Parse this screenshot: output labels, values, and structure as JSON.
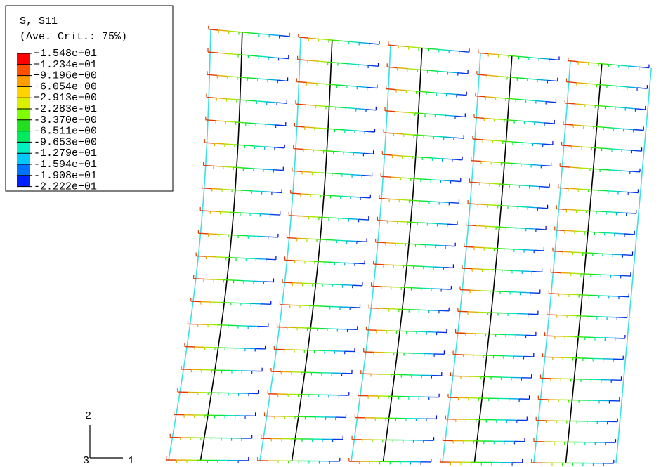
{
  "legend": {
    "title": "S, S11",
    "subtitle": "(Ave. Crit.: 75%)",
    "levels": [
      "+1.548e+01",
      "+1.234e+01",
      "+9.196e+00",
      "+6.054e+00",
      "+2.913e+00",
      "-2.283e-01",
      "-3.370e+00",
      "-6.511e+00",
      "-9.653e+00",
      "-1.279e+01",
      "-1.594e+01",
      "-1.908e+01",
      "-2.222e+01"
    ]
  },
  "triad": {
    "axis_2": "2",
    "axis_3": "3",
    "axis_1": "1"
  }
}
